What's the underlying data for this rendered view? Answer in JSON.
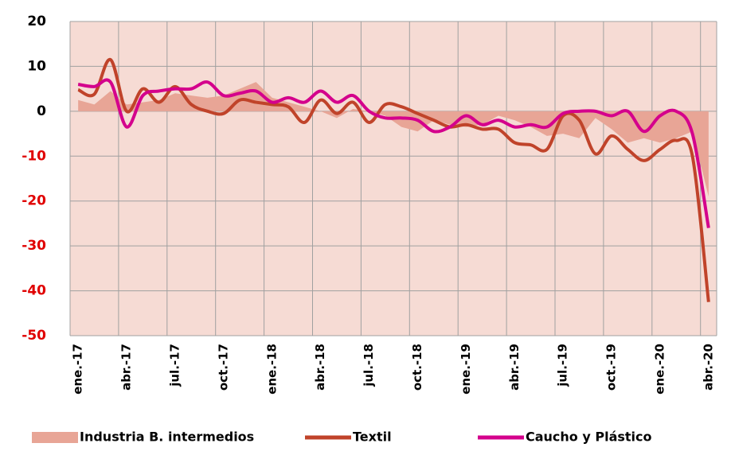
{
  "chart_data": {
    "type": "line",
    "categories": [
      "ene.-17",
      null,
      null,
      "abr.-17",
      null,
      null,
      "jul.-17",
      null,
      null,
      "oct.-17",
      null,
      null,
      "ene.-18",
      null,
      null,
      "abr.-18",
      null,
      null,
      "jul.-18",
      null,
      null,
      "oct.-18",
      null,
      null,
      "ene.-19",
      null,
      null,
      "abr.-19",
      null,
      null,
      "jul.-19",
      null,
      null,
      "oct.-19",
      null,
      null,
      "ene.-20",
      null,
      null,
      "abr.-20"
    ],
    "series": [
      {
        "name": "Industria B. intermedios",
        "kind": "area",
        "color": "#e8a596",
        "values": [
          2.5,
          1.5,
          4.5,
          1.5,
          2,
          2.5,
          4,
          3.5,
          3,
          3.5,
          5,
          6.5,
          3,
          2,
          1,
          0,
          -1.5,
          0.5,
          0,
          -1,
          -3.5,
          -4.5,
          -2,
          -3,
          -3.5,
          -3,
          -1,
          -2,
          -3.5,
          -5.5,
          -5,
          -6,
          -1.5,
          -4,
          -7,
          -6,
          -7,
          -6,
          -4.5,
          -19
        ]
      },
      {
        "name": "Textil",
        "kind": "line",
        "color": "#c0432a",
        "values": [
          4.8,
          3.8,
          11.5,
          0,
          5,
          2,
          5.5,
          1.5,
          0,
          -0.5,
          2.5,
          2,
          1.5,
          1,
          -2.5,
          2.5,
          -0.5,
          2,
          -2.5,
          1.5,
          1,
          -0.5,
          -2,
          -3.5,
          -3,
          -4,
          -4,
          -7,
          -7.5,
          -8.5,
          -1,
          -2,
          -9.5,
          -5.5,
          -8.5,
          -11,
          -8.5,
          -6.5,
          -10,
          -42.5
        ]
      },
      {
        "name": "Caucho y Plástico",
        "kind": "line",
        "color": "#d4008c",
        "values": [
          6,
          5.5,
          6.5,
          -3.5,
          3.5,
          4.5,
          5,
          5,
          6.5,
          3.5,
          4,
          4.5,
          2,
          3,
          2,
          4.5,
          2,
          3.5,
          0,
          -1.5,
          -1.5,
          -2,
          -4.5,
          -3.5,
          -1,
          -3,
          -2,
          -3.5,
          -3,
          -3.5,
          -0.5,
          0,
          0,
          -1,
          0,
          -4.5,
          -1,
          0,
          -5,
          -26
        ]
      }
    ],
    "ylim": [
      -50,
      20
    ],
    "yticks": [
      -50,
      -40,
      -30,
      -20,
      -10,
      0,
      10,
      20
    ],
    "grid": true,
    "legend": "bottom",
    "plot_background": "#f6dbd4",
    "grid_color": "#a0a0a0",
    "negative_tick_color": "#e00000"
  }
}
